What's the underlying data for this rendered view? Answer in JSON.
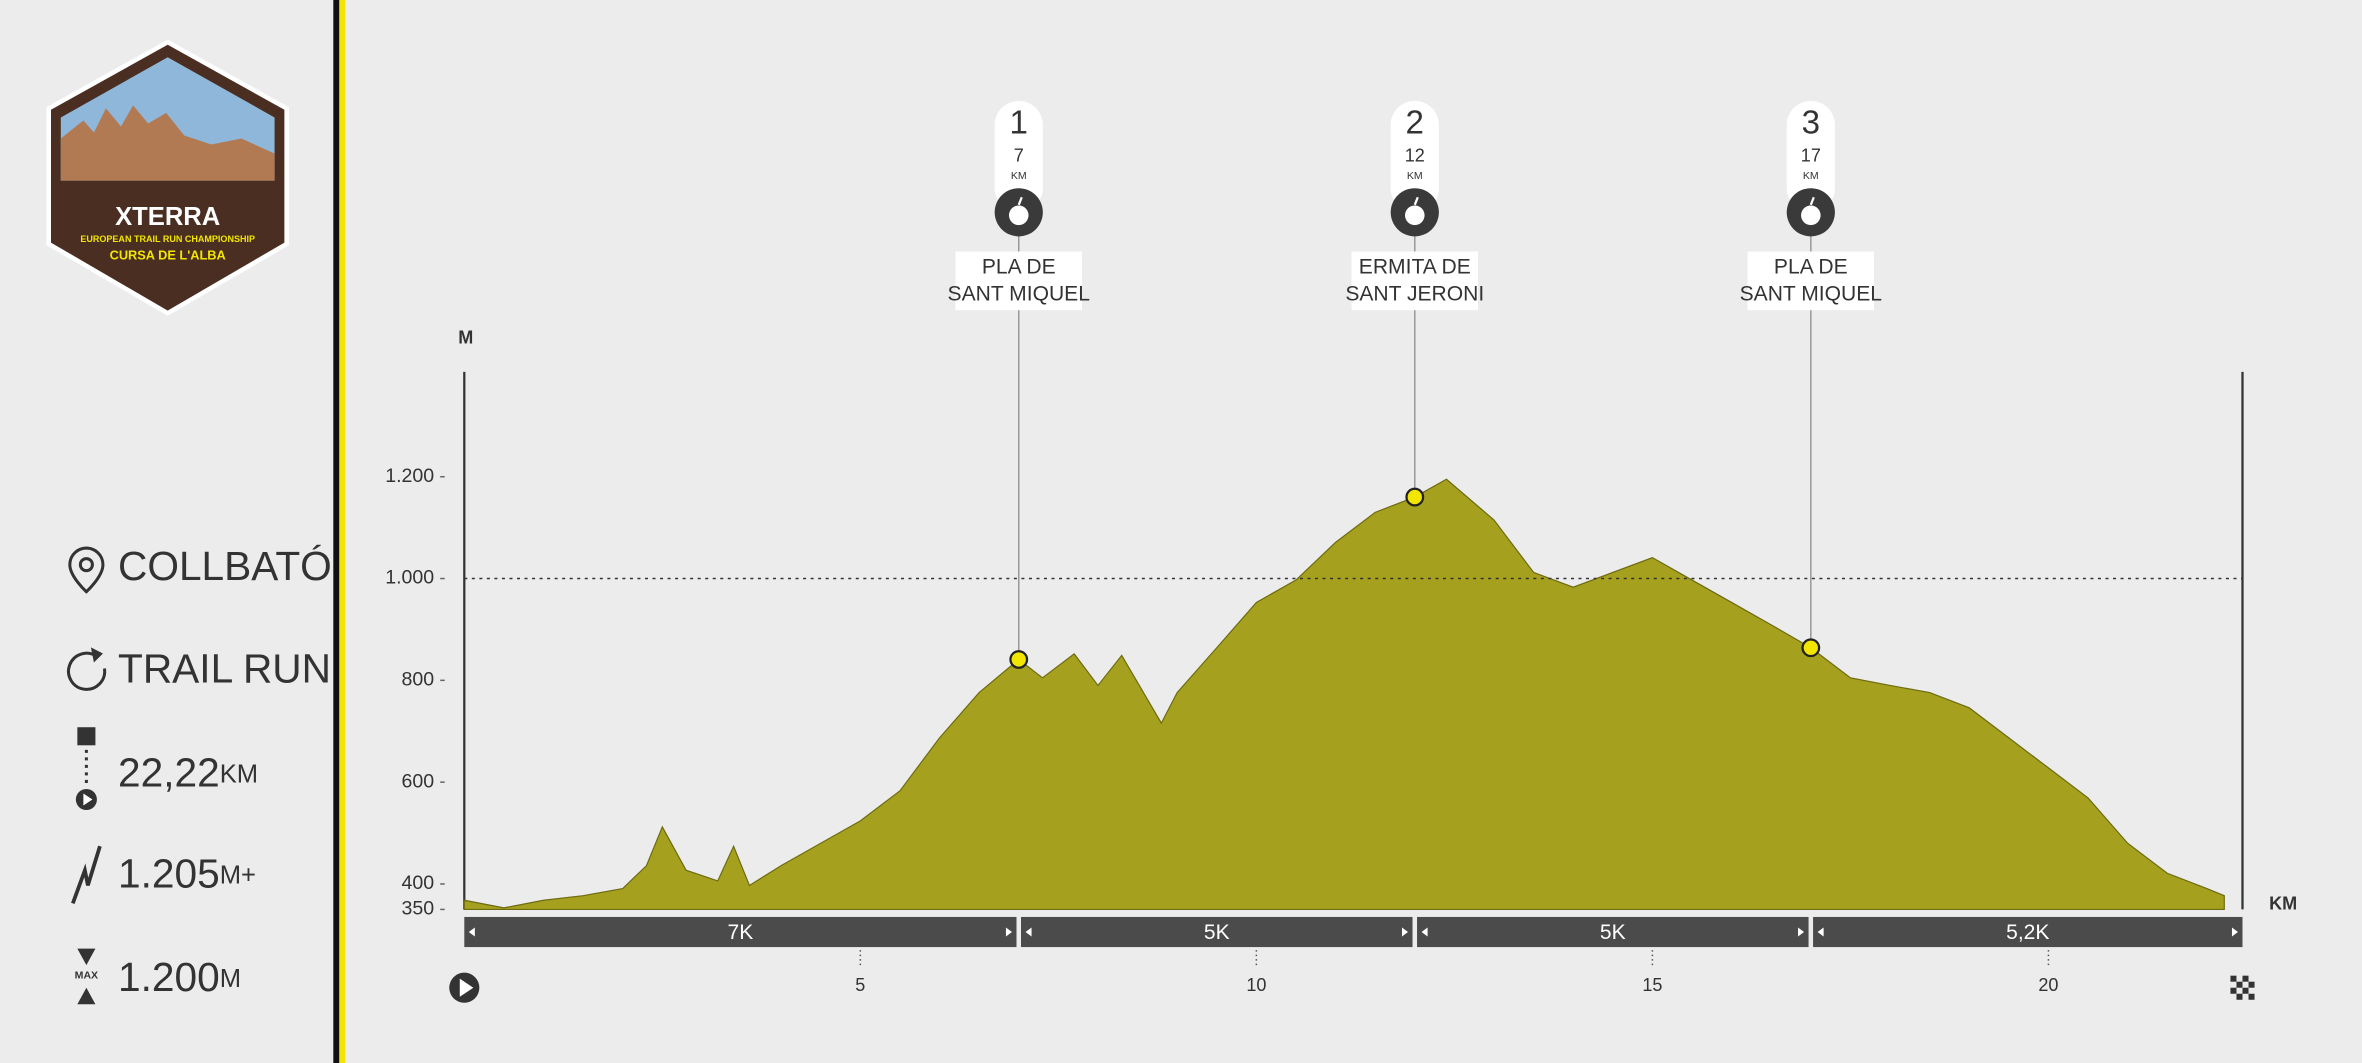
{
  "sidebar": {
    "logo_title": "XTERRA",
    "logo_subtitle": "EUROPEAN TRAIL RUN CHAMPIONSHIP",
    "logo_race": "CURSA DE L'ALBA",
    "location": "COLLBATÓ",
    "discipline": "TRAIL RUN",
    "distance_value": "22,22",
    "distance_unit": "KM",
    "gain_value": "1.205",
    "gain_unit": "M+",
    "max_label": "MAX",
    "max_value": "1.200",
    "max_unit": "M"
  },
  "chart_data": {
    "type": "area",
    "y_label": "M",
    "x_label": "KM",
    "color": "#a5a11f",
    "x": [
      0,
      0.5,
      1,
      1.5,
      2,
      2.3,
      2.5,
      2.8,
      3.2,
      3.4,
      3.6,
      4,
      4.5,
      5,
      5.5,
      6,
      6.5,
      7,
      7.3,
      7.7,
      8,
      8.3,
      8.8,
      9,
      9.5,
      10,
      10.5,
      11,
      11.5,
      12,
      12.4,
      13,
      13.5,
      14,
      15,
      15.5,
      16,
      16.5,
      17,
      17.5,
      18,
      18.5,
      19,
      19.5,
      20,
      20.5,
      21,
      21.5,
      22,
      22.22
    ],
    "values": [
      368,
      353,
      368,
      377,
      391,
      436,
      512,
      427,
      406,
      474,
      397,
      436,
      480,
      524,
      583,
      687,
      776,
      841,
      805,
      852,
      790,
      849,
      716,
      776,
      864,
      953,
      997,
      1071,
      1130,
      1160,
      1195,
      1115,
      1012,
      983,
      1041,
      997,
      953,
      909,
      864,
      805,
      790,
      776,
      746,
      687,
      628,
      569,
      480,
      421,
      391,
      377
    ],
    "xlim": [
      0,
      22.45
    ],
    "xticks": [
      5,
      10,
      15,
      20
    ],
    "ylim": [
      350,
      1400
    ],
    "yticks": [
      350,
      400,
      600,
      800,
      {
        "value": 1000,
        "label": "1.000"
      },
      {
        "value": 1200,
        "label": "1.200"
      }
    ],
    "reference_line": 1000,
    "station_unit": "KM",
    "stations": [
      {
        "number": 1,
        "km": 7,
        "elevation": 841,
        "name": [
          "PLA DE",
          "SANT MIQUEL"
        ]
      },
      {
        "number": 2,
        "km": 12,
        "elevation": 1160,
        "name": [
          "ERMITA DE",
          "SANT JERONI"
        ]
      },
      {
        "number": 3,
        "km": 17,
        "elevation": 864,
        "name": [
          "PLA DE",
          "SANT MIQUEL"
        ]
      }
    ],
    "segments": [
      "7K",
      "5K",
      "5K",
      "5,2K"
    ]
  }
}
